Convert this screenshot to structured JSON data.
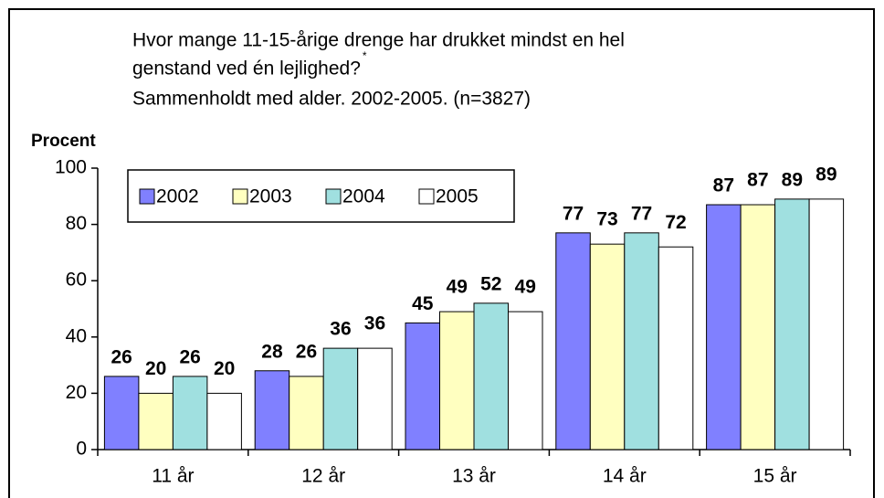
{
  "chart_data": {
    "type": "bar",
    "title_lines": [
      "Hvor mange 11-15-årige drenge har drukket mindst en hel",
      "genstand ved én lejlighed?",
      "Sammenholdt med alder. 2002-2005. (n=3827)"
    ],
    "title_note": "*",
    "y_label": "Procent",
    "categories": [
      "11 år",
      "12 år",
      "13 år",
      "14 år",
      "15 år"
    ],
    "series": [
      {
        "name": "2002",
        "color": "#8080ff",
        "values": [
          26,
          28,
          45,
          77,
          87
        ]
      },
      {
        "name": "2003",
        "color": "#ffffc0",
        "values": [
          20,
          26,
          49,
          73,
          87
        ]
      },
      {
        "name": "2004",
        "color": "#a0e0e0",
        "values": [
          26,
          36,
          52,
          77,
          89
        ]
      },
      {
        "name": "2005",
        "color": "#ffffff",
        "values": [
          20,
          36,
          49,
          72,
          89
        ]
      }
    ],
    "ylim": [
      0,
      100
    ],
    "yticks": [
      0,
      20,
      40,
      60,
      80,
      100
    ],
    "legend": "top-left",
    "grid": false
  }
}
